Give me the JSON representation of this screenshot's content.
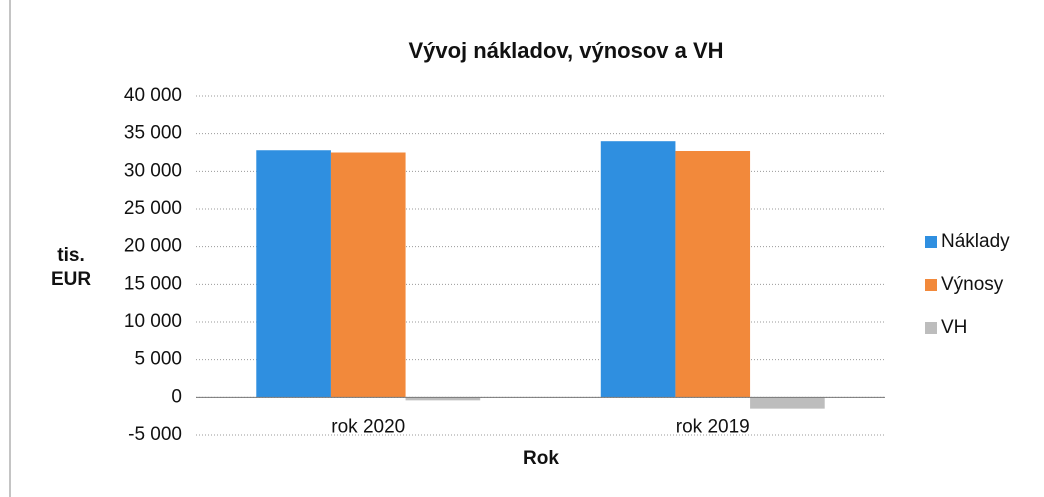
{
  "chart_data": {
    "type": "bar",
    "title": "Vývoj nákladov, výnosov a VH",
    "y_label": [
      "tis.",
      "EUR"
    ],
    "x_label": "Rok",
    "categories": [
      "rok 2020",
      "rok 2019"
    ],
    "series": [
      {
        "name": "Náklady",
        "color": "#2f8fe0",
        "values": [
          32800,
          34000
        ]
      },
      {
        "name": "Výnosy",
        "color": "#f2893b",
        "values": [
          32500,
          32700
        ]
      },
      {
        "name": "VH",
        "color": "#bdbdbd",
        "values": [
          -400,
          -1500
        ]
      }
    ],
    "ylim": [
      -5000,
      40000
    ],
    "yticks": [
      {
        "value": -5000,
        "label": "-5 000"
      },
      0,
      {
        "value": 5000,
        "label": "5 000"
      },
      {
        "value": 10000,
        "label": "10 000"
      },
      {
        "value": 15000,
        "label": "15 000"
      },
      {
        "value": 20000,
        "label": "20 000"
      },
      {
        "value": 25000,
        "label": "25 000"
      },
      {
        "value": 30000,
        "label": "30 000"
      },
      {
        "value": 35000,
        "label": "35 000"
      },
      {
        "value": 40000,
        "label": "40 000"
      }
    ],
    "grid": true,
    "legend": "right"
  }
}
